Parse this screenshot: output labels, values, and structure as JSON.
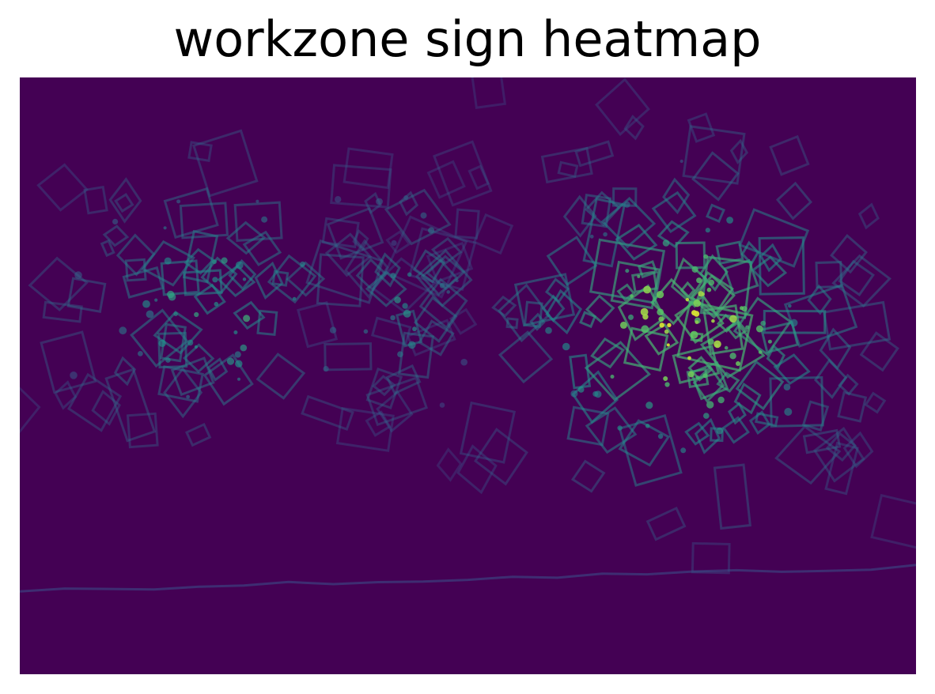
{
  "chart_data": {
    "type": "heatmap",
    "title": "workzone sign heatmap",
    "xlabel": "",
    "ylabel": "",
    "axes": "off",
    "grid": false,
    "legend": "none",
    "colormap": "viridis",
    "colors": {
      "background": "#440154",
      "low": "#3b528b",
      "mid": "#21918c",
      "high": "#5ec962",
      "peak": "#fde725"
    },
    "clusters": [
      {
        "region": "left",
        "center_x": 0.22,
        "center_y": 0.38,
        "spread_x": 0.11,
        "spread_y": 0.14,
        "count": 70,
        "peak_intensity": 0.55
      },
      {
        "region": "center",
        "center_x": 0.43,
        "center_y": 0.36,
        "spread_x": 0.05,
        "spread_y": 0.12,
        "count": 30,
        "peak_intensity": 0.45
      },
      {
        "region": "right",
        "center_x": 0.74,
        "center_y": 0.42,
        "spread_x": 0.12,
        "spread_y": 0.16,
        "count": 130,
        "peak_intensity": 0.95
      }
    ]
  }
}
